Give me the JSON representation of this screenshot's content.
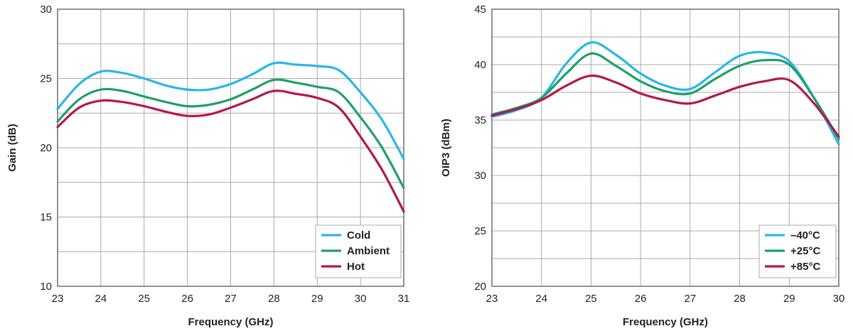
{
  "chart_data": [
    {
      "type": "line",
      "title": "",
      "xlabel": "Frequency (GHz)",
      "ylabel": "Gain (dB)",
      "xlim": [
        23,
        31
      ],
      "ylim": [
        10,
        30
      ],
      "xticks": [
        "23",
        "24",
        "25",
        "26",
        "27",
        "28",
        "29",
        "30",
        "31"
      ],
      "yticks": [
        "10",
        "15",
        "20",
        "25",
        "30"
      ],
      "grid": true,
      "legend_position": "bottom-right",
      "x": [
        23,
        23.5,
        24,
        24.5,
        25,
        25.5,
        26,
        26.5,
        27,
        27.5,
        28,
        28.5,
        29,
        29.5,
        30,
        30.5,
        31
      ],
      "series": [
        {
          "name": "Cold",
          "color": "#29B6E8",
          "values": [
            22.8,
            24.6,
            25.5,
            25.4,
            25.0,
            24.5,
            24.2,
            24.2,
            24.6,
            25.3,
            26.1,
            26.0,
            25.9,
            25.6,
            24.0,
            22.0,
            19.2
          ]
        },
        {
          "name": "Ambient",
          "color": "#1EA06B",
          "values": [
            21.9,
            23.5,
            24.2,
            24.1,
            23.7,
            23.3,
            23.0,
            23.1,
            23.5,
            24.2,
            24.9,
            24.7,
            24.4,
            24.0,
            22.2,
            20.0,
            17.1
          ]
        },
        {
          "name": "Hot",
          "color": "#B5174E",
          "values": [
            21.5,
            22.9,
            23.4,
            23.3,
            23.0,
            22.6,
            22.3,
            22.4,
            22.9,
            23.5,
            24.1,
            23.9,
            23.6,
            22.9,
            20.8,
            18.4,
            15.4
          ]
        }
      ]
    },
    {
      "type": "line",
      "title": "",
      "xlabel": "Frequency (GHz)",
      "ylabel": "OIP3 (dBm)",
      "xlim": [
        23,
        30
      ],
      "ylim": [
        20,
        45
      ],
      "xticks": [
        "23",
        "24",
        "25",
        "26",
        "27",
        "28",
        "29",
        "30"
      ],
      "yticks": [
        "20",
        "25",
        "30",
        "35",
        "40",
        "45"
      ],
      "grid": true,
      "legend_position": "bottom-right",
      "x": [
        23,
        23.5,
        24,
        24.5,
        25,
        25.5,
        26,
        26.5,
        27,
        27.5,
        28,
        28.5,
        29,
        29.5,
        30
      ],
      "series": [
        {
          "name": "–40°C",
          "color": "#29B6E8",
          "values": [
            35.3,
            35.9,
            37.0,
            40.1,
            42.0,
            40.9,
            39.2,
            38.1,
            37.8,
            39.3,
            40.8,
            41.1,
            40.3,
            37.0,
            32.8
          ]
        },
        {
          "name": "+25°C",
          "color": "#1EA06B",
          "values": [
            35.5,
            36.1,
            37.0,
            39.2,
            41.0,
            39.9,
            38.5,
            37.6,
            37.4,
            38.7,
            39.9,
            40.4,
            40.0,
            37.0,
            33.3
          ]
        },
        {
          "name": "+85°C",
          "color": "#B5174E",
          "values": [
            35.4,
            36.0,
            36.8,
            38.1,
            39.0,
            38.4,
            37.4,
            36.8,
            36.5,
            37.2,
            38.0,
            38.5,
            38.6,
            36.5,
            33.5
          ]
        }
      ]
    }
  ]
}
